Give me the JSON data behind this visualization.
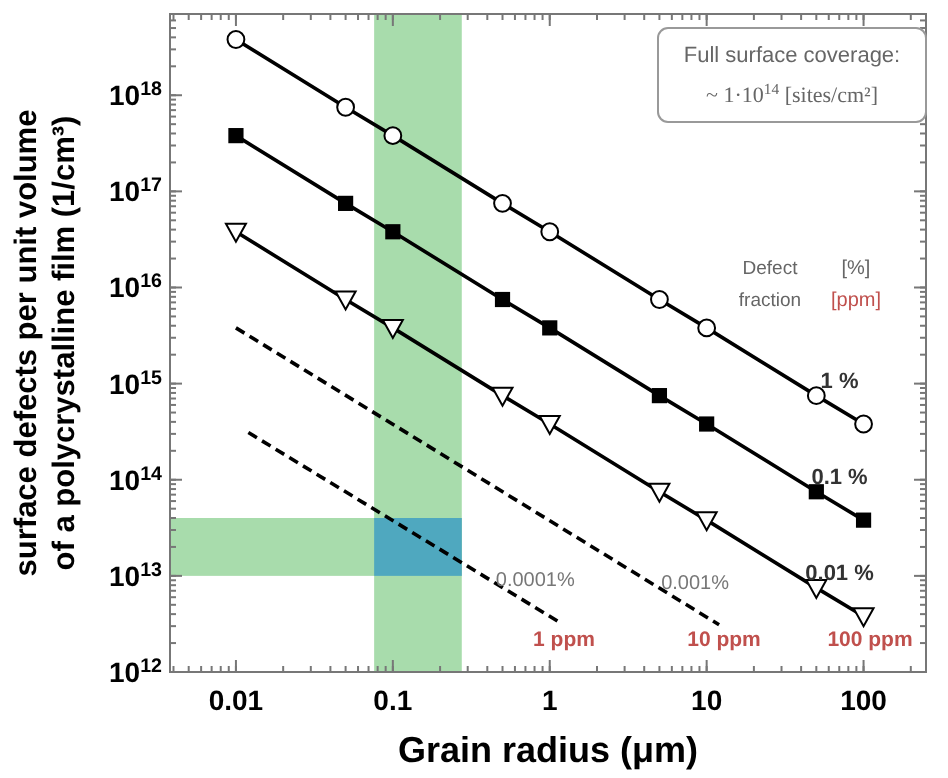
{
  "chart_data": {
    "type": "line",
    "xlabel": "Grain radius (μm)",
    "ylabel": "surface defects per unit volume\nof a polycrystalline film (1/cm³)",
    "log": "xy",
    "xlim": [
      0.0038,
      250
    ],
    "ylim": [
      1000000000000.0,
      7e+18
    ],
    "xticks": [
      0.01,
      0.1,
      1,
      10,
      100
    ],
    "yticks": [
      {
        "value": 1000000000000.0,
        "label": "10$^{12}$"
      },
      {
        "value": 10000000000000.0,
        "label": "10$^{13}$"
      },
      {
        "value": 100000000000000.0,
        "label": "10$^{14}$"
      },
      {
        "value": 1000000000000000.0,
        "label": "10$^{15}$"
      },
      {
        "value": 1e+16,
        "label": "10$^{16}$"
      },
      {
        "value": 1e+17,
        "label": "10$^{17}$"
      },
      {
        "value": 1e+18,
        "label": "10$^{18}$"
      }
    ],
    "bands": [
      {
        "axis": "x",
        "from": 0.076,
        "to": 0.275,
        "color": "#a8dcac"
      },
      {
        "axis": "y",
        "from": 10000000000000.0,
        "to": 40000000000000.0,
        "color": "#a8dcac"
      }
    ],
    "series": [
      {
        "name": "1 %",
        "color": "#000000",
        "marker": "circle",
        "line_style": "solid",
        "x": [
          0.01,
          0.05,
          0.1,
          0.5,
          1,
          5,
          10,
          50,
          100
        ],
        "values": [
          3.8e+18,
          7.5e+17,
          3.8e+17,
          7.5e+16,
          3.8e+16,
          7500000000000000.0,
          3800000000000000.0,
          750000000000000.0,
          380000000000000.0
        ]
      },
      {
        "name": "0.1 %",
        "color": "#000000",
        "marker": "square",
        "line_style": "solid",
        "x": [
          0.01,
          0.05,
          0.1,
          0.5,
          1,
          5,
          10,
          50,
          100
        ],
        "values": [
          3.8e+17,
          7.5e+16,
          3.8e+16,
          7500000000000000.0,
          3800000000000000.0,
          750000000000000.0,
          380000000000000.0,
          75000000000000.0,
          38000000000000.0
        ]
      },
      {
        "name": "0.01 %",
        "color": "#000000",
        "marker": "triangle",
        "line_style": "solid",
        "x": [
          0.01,
          0.05,
          0.1,
          0.5,
          1,
          5,
          10,
          50,
          100
        ],
        "values": [
          3.8e+16,
          7500000000000000.0,
          3800000000000000.0,
          750000000000000.0,
          380000000000000.0,
          75000000000000.0,
          38000000000000.0,
          7500000000000.0,
          3800000000000.0
        ]
      },
      {
        "name": "0.0001%",
        "color": "#000000",
        "marker": "none",
        "line_style": "dashed",
        "x": [
          0.012,
          1.15
        ],
        "values": [
          310000000000000.0,
          3300000000000.0
        ]
      },
      {
        "name": "0.001%",
        "color": "#000000",
        "marker": "none",
        "line_style": "dashed",
        "x": [
          0.01,
          12
        ],
        "values": [
          3800000000000000.0,
          3100000000000.0
        ]
      }
    ],
    "annotations": [
      "Full surface coverage:",
      "~ 1·10$^{14}$ [sites/cm²]",
      "Defect fraction",
      "[%]",
      "[ppm]",
      "1 ppm",
      "10 ppm",
      "100 ppm"
    ]
  }
}
